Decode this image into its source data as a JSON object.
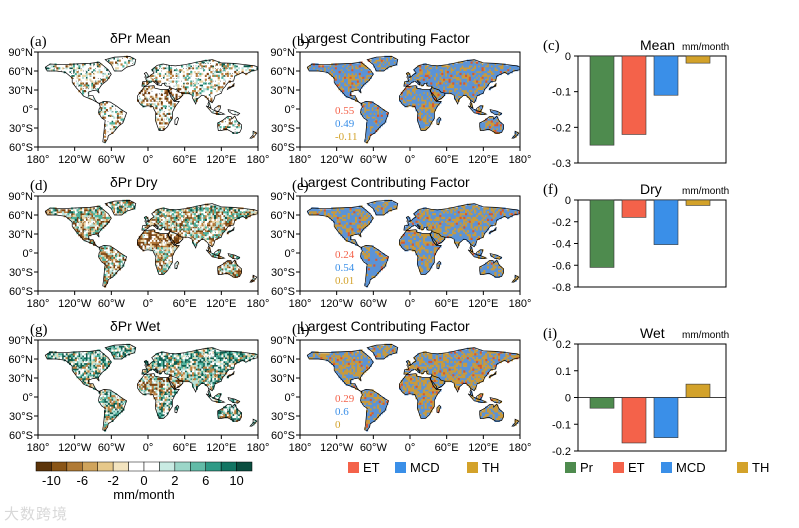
{
  "colors": {
    "Pr": "#4e8b4e",
    "ET": "#f4624a",
    "MCD": "#3a8fe8",
    "TH": "#d3a22a",
    "land_mcd": "#5b93d6",
    "land_th": "#c99a3b",
    "land_et": "#d8592e",
    "dry_dark": "#7a4412",
    "dry_mid": "#bb8040",
    "dry_light": "#ead6a8",
    "wet_light": "#b8e2da",
    "wet_mid": "#4fb29c",
    "wet_dark": "#0e5f50",
    "ocean": "#ffffff",
    "coast": "#000000"
  },
  "maps": {
    "lon_ticks": [
      "180°",
      "120°W",
      "60°W",
      "0°",
      "60°E",
      "120°E",
      "180°"
    ],
    "lat_ticks": [
      "90°N",
      "60°N",
      "30°N",
      "0°",
      "30°S",
      "60°S"
    ],
    "panels": [
      {
        "id": "a",
        "label": "(a)",
        "title": "δPr  Mean",
        "kind": "pr",
        "variant": "mean"
      },
      {
        "id": "b",
        "label": "(b)",
        "title": "Largest Contributing Factor",
        "kind": "factor",
        "variant": "mean",
        "stats": {
          "ET": "0.55",
          "MCD": "0.49",
          "TH": "-0.11"
        }
      },
      {
        "id": "d",
        "label": "(d)",
        "title": "δPr  Dry",
        "kind": "pr",
        "variant": "dry"
      },
      {
        "id": "e",
        "label": "(e)",
        "title": "Largest Contributing Factor",
        "kind": "factor",
        "variant": "dry",
        "stats": {
          "ET": "0.24",
          "MCD": "0.54",
          "TH": "0.01"
        }
      },
      {
        "id": "g",
        "label": "(g)",
        "title": "δPr  Wet",
        "kind": "pr",
        "variant": "wet"
      },
      {
        "id": "h",
        "label": "(h)",
        "title": "Largest Contributing Factor",
        "kind": "factor",
        "variant": "wet",
        "stats": {
          "ET": "0.29",
          "MCD": "0.6",
          "TH": "0"
        }
      }
    ]
  },
  "colorbar": {
    "tick_labels": [
      "-10",
      "-6",
      "-2",
      "2",
      "6",
      "10"
    ],
    "zero_label": "0",
    "unit": "mm/month",
    "colors": [
      "#5c3409",
      "#8a5516",
      "#b07a35",
      "#d0a45c",
      "#e6c88a",
      "#f3e4bf",
      "#ffffff",
      "#ffffff",
      "#c9ebe3",
      "#9bd6c8",
      "#62bba7",
      "#2f9a86",
      "#127563",
      "#0a4e40"
    ]
  },
  "factor_legend": [
    {
      "key": "ET",
      "label": "ET"
    },
    {
      "key": "MCD",
      "label": "MCD"
    },
    {
      "key": "TH",
      "label": "TH"
    }
  ],
  "bar_legend": [
    {
      "key": "Pr",
      "label": "Pr"
    },
    {
      "key": "ET",
      "label": "ET"
    },
    {
      "key": "MCD",
      "label": "MCD"
    },
    {
      "key": "TH",
      "label": "TH"
    }
  ],
  "chart_data": [
    {
      "type": "bar",
      "panel": "(c)",
      "title": "Mean",
      "unit": "mm/month",
      "categories": [
        "Pr",
        "ET",
        "MCD",
        "TH"
      ],
      "values": [
        -0.25,
        -0.22,
        -0.11,
        -0.02
      ],
      "ylim": [
        -0.3,
        0
      ],
      "yticks": [
        0,
        -0.1,
        -0.2,
        -0.3
      ],
      "ytick_labels": [
        "0",
        "-0.1",
        "-0.2",
        "-0.3"
      ]
    },
    {
      "type": "bar",
      "panel": "(f)",
      "title": "Dry",
      "unit": "mm/month",
      "categories": [
        "Pr",
        "ET",
        "MCD",
        "TH"
      ],
      "values": [
        -0.62,
        -0.16,
        -0.41,
        -0.05
      ],
      "ylim": [
        -0.8,
        0
      ],
      "yticks": [
        0,
        -0.2,
        -0.4,
        -0.6,
        -0.8
      ],
      "ytick_labels": [
        "0",
        "-0.2",
        "-0.4",
        "-0.6",
        "-0.8"
      ]
    },
    {
      "type": "bar",
      "panel": "(i)",
      "title": "Wet",
      "unit": "mm/month",
      "categories": [
        "Pr",
        "ET",
        "MCD",
        "TH"
      ],
      "values": [
        -0.04,
        -0.17,
        -0.15,
        0.05
      ],
      "ylim": [
        -0.2,
        0.2
      ],
      "yticks": [
        0.2,
        0.1,
        0,
        -0.1,
        -0.2
      ],
      "ytick_labels": [
        "0.2",
        "0.1",
        "0",
        "-0.1",
        "-0.2"
      ]
    }
  ],
  "watermark": "大数跨境"
}
